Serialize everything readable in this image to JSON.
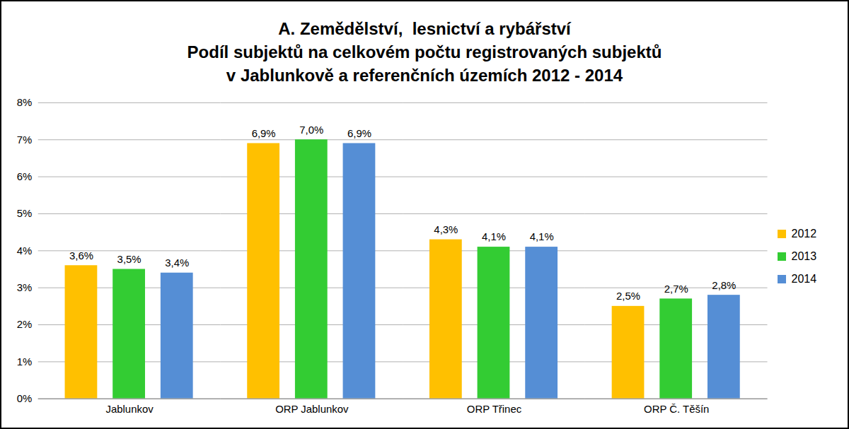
{
  "chart_data": {
    "type": "bar",
    "title": "A. Zemědělství,  lesnictví a rybářství\nPodíl subjektů na celkovém počtu registrovaných subjektů\nv Jablunkově a referenčních územích 2012 - 2014",
    "categories": [
      "Jablunkov",
      "ORP Jablunkov",
      "ORP Třinec",
      "ORP Č. Těšín"
    ],
    "series": [
      {
        "name": "2012",
        "color": "#FFC000",
        "values": [
          3.6,
          6.9,
          4.3,
          2.5
        ],
        "value_labels": [
          "3,6%",
          "6,9%",
          "4,3%",
          "2,5%"
        ]
      },
      {
        "name": "2013",
        "color": "#33CC33",
        "values": [
          3.5,
          7.0,
          4.1,
          2.7
        ],
        "value_labels": [
          "3,5%",
          "7,0%",
          "4,1%",
          "2,7%"
        ]
      },
      {
        "name": "2014",
        "color": "#558ED5",
        "values": [
          3.4,
          6.9,
          4.1,
          2.8
        ],
        "value_labels": [
          "3,4%",
          "6,9%",
          "4,1%",
          "2,8%"
        ]
      }
    ],
    "ylim": [
      0,
      8
    ],
    "yticks": [
      {
        "value": 0,
        "label": "0%"
      },
      {
        "value": 1,
        "label": "1%"
      },
      {
        "value": 2,
        "label": "2%"
      },
      {
        "value": 3,
        "label": "3%"
      },
      {
        "value": 4,
        "label": "4%"
      },
      {
        "value": 5,
        "label": "5%"
      },
      {
        "value": 6,
        "label": "6%"
      },
      {
        "value": 7,
        "label": "7%"
      },
      {
        "value": 8,
        "label": "8%"
      }
    ],
    "grid": true,
    "legend": "right",
    "data_labels": true
  }
}
